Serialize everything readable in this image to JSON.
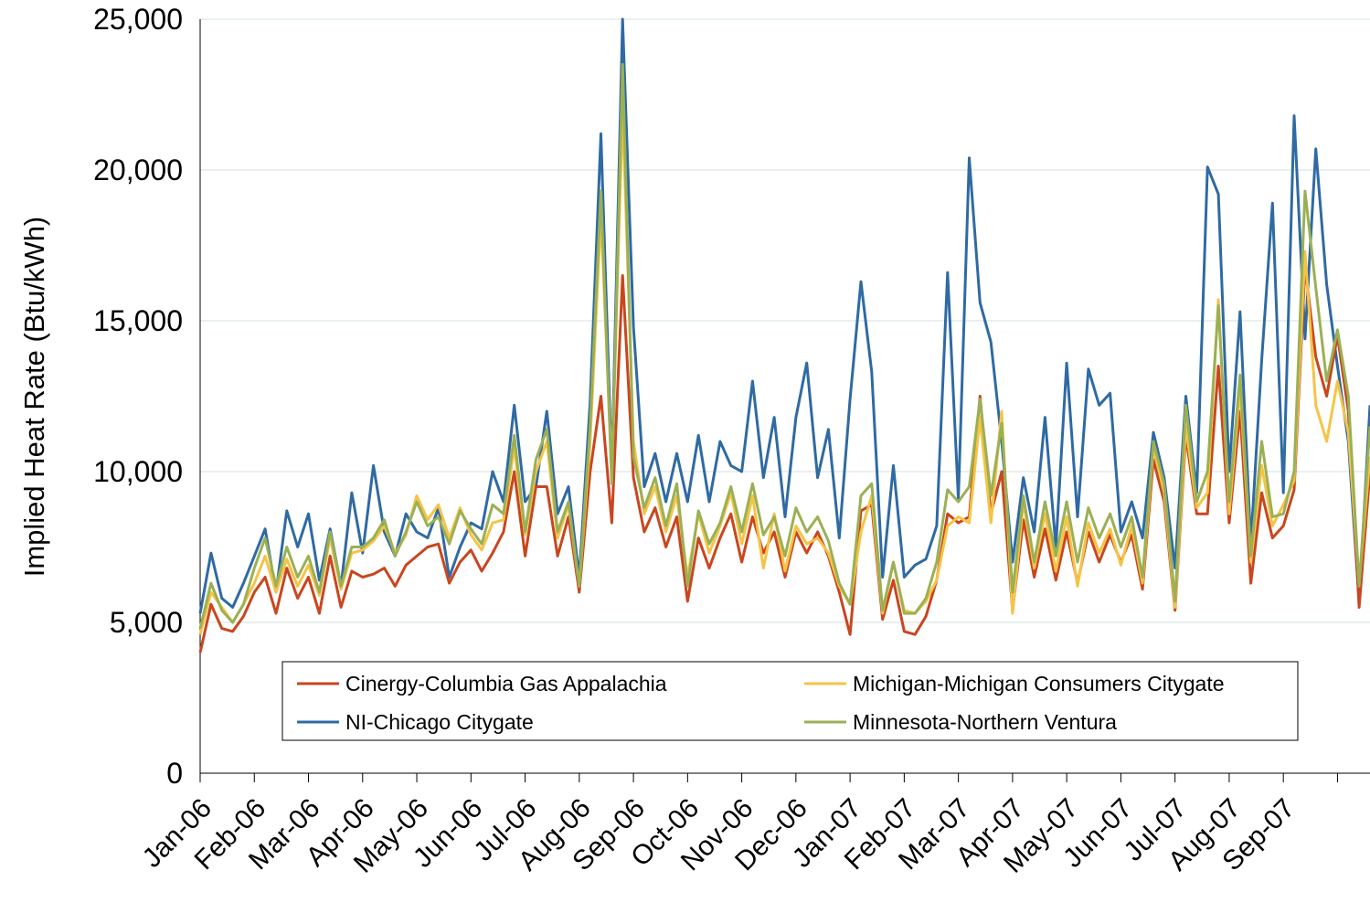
{
  "chart_data": {
    "type": "line",
    "y_label": "Implied Heat Rate (Btu/kWh)",
    "ylim": [
      0,
      25000
    ],
    "yticks": [
      0,
      {
        "value": 5000,
        "label": "5,000"
      },
      {
        "value": 10000,
        "label": "10,000"
      },
      {
        "value": 15000,
        "label": "15,000"
      },
      {
        "value": 20000,
        "label": "20,000"
      },
      {
        "value": 25000,
        "label": "25,000"
      }
    ],
    "grid": true,
    "legend": "bottom",
    "categories": [
      "Jan-06",
      null,
      null,
      null,
      null,
      "Feb-06",
      null,
      null,
      null,
      null,
      "Mar-06",
      null,
      null,
      null,
      null,
      "Apr-06",
      null,
      null,
      null,
      null,
      "May-06",
      null,
      null,
      null,
      null,
      "Jun-06",
      null,
      null,
      null,
      null,
      "Jul-06",
      null,
      null,
      null,
      null,
      "Aug-06",
      null,
      null,
      null,
      null,
      "Sep-06",
      null,
      null,
      null,
      null,
      "Oct-06",
      null,
      null,
      null,
      null,
      "Nov-06",
      null,
      null,
      null,
      null,
      "Dec-06",
      null,
      null,
      null,
      null,
      "Jan-07",
      null,
      null,
      null,
      null,
      "Feb-07",
      null,
      null,
      null,
      null,
      "Mar-07",
      null,
      null,
      null,
      null,
      "Apr-07",
      null,
      null,
      null,
      null,
      "May-07",
      null,
      null,
      null,
      null,
      "Jun-07",
      null,
      null,
      null,
      null,
      "Jul-07",
      null,
      null,
      null,
      null,
      "Aug-07",
      null,
      null,
      null,
      null,
      "Sep-07",
      null,
      null,
      null,
      null,
      null,
      null,
      null,
      null
    ],
    "series": [
      {
        "name": "Cinergy-Columbia Gas Appalachia",
        "color": "#c9461e",
        "values": [
          4000,
          5600,
          4800,
          4700,
          5200,
          6000,
          6500,
          5300,
          6800,
          5800,
          6500,
          5300,
          7200,
          5500,
          6700,
          6500,
          6600,
          6800,
          6200,
          6900,
          7200,
          7500,
          7600,
          6300,
          7000,
          7400,
          6700,
          7300,
          8000,
          10000,
          7200,
          9500,
          9500,
          7200,
          8500,
          6000,
          10000,
          12500,
          8300,
          16500,
          9800,
          8000,
          8800,
          7500,
          8500,
          5700,
          7800,
          6800,
          7800,
          8600,
          7000,
          8500,
          7300,
          8000,
          6500,
          8000,
          7300,
          8000,
          7200,
          6000,
          4600,
          8700,
          8900,
          5100,
          6400,
          4700,
          4600,
          5200,
          6400,
          8600,
          8300,
          8500,
          12500,
          8600,
          10000,
          5400,
          8400,
          6500,
          8100,
          6400,
          8000,
          6300,
          8000,
          7000,
          7900,
          7000,
          7900,
          6100,
          10400,
          9000,
          5400,
          11200,
          8600,
          8600,
          13500,
          8300,
          12000,
          6300,
          9300,
          7800,
          8200,
          9400,
          16800,
          13800,
          12500,
          14500,
          12000,
          5500,
          10000
        ]
      },
      {
        "name": "Michigan-Michigan Consumers Citygate",
        "color": "#f5c446",
        "values": [
          4600,
          6000,
          5500,
          5000,
          5600,
          6300,
          7200,
          6000,
          7100,
          6200,
          6900,
          5900,
          7800,
          6100,
          7300,
          7400,
          7700,
          8200,
          7300,
          7900,
          9200,
          8400,
          8900,
          7800,
          8800,
          7900,
          7400,
          8300,
          8400,
          10800,
          7900,
          10000,
          11000,
          7800,
          8900,
          6200,
          11000,
          18500,
          10000,
          22000,
          11000,
          8600,
          9500,
          8000,
          9200,
          6500,
          8600,
          7300,
          8200,
          9300,
          7600,
          9200,
          6800,
          8600,
          6700,
          8200,
          7600,
          7800,
          7300,
          6200,
          5600,
          8000,
          9200,
          5300,
          7000,
          5400,
          5300,
          5700,
          6400,
          8200,
          8500,
          8300,
          11800,
          8300,
          12000,
          5300,
          9000,
          6800,
          8600,
          6700,
          8500,
          6200,
          8300,
          7300,
          8100,
          6900,
          8200,
          6300,
          10800,
          9300,
          5500,
          11500,
          8800,
          9300,
          15700,
          8600,
          12800,
          7000,
          10200,
          8200,
          8900,
          9700,
          17300,
          12200,
          11000,
          13000,
          11300,
          6300,
          10500
        ]
      },
      {
        "name": "NI-Chicago Citygate",
        "color": "#2f6aa3",
        "values": [
          5300,
          7300,
          5800,
          5500,
          6300,
          7200,
          8100,
          6000,
          8700,
          7500,
          8600,
          6400,
          8100,
          6200,
          9300,
          7300,
          10200,
          8000,
          7200,
          8600,
          8000,
          7800,
          8800,
          6500,
          7500,
          8300,
          8100,
          10000,
          9000,
          12200,
          9000,
          9500,
          12000,
          8600,
          9500,
          6500,
          12300,
          21200,
          10000,
          25000,
          14800,
          9500,
          10600,
          9000,
          10600,
          9000,
          11200,
          9000,
          11000,
          10200,
          10000,
          13000,
          9800,
          11800,
          8500,
          11800,
          13600,
          9800,
          11400,
          7800,
          12400,
          16300,
          13300,
          6500,
          10200,
          6500,
          6900,
          7100,
          8200,
          16600,
          9100,
          20400,
          15600,
          14300,
          11000,
          7000,
          9800,
          8000,
          11800,
          7500,
          13600,
          8500,
          13400,
          12200,
          12600,
          8000,
          9000,
          7800,
          11300,
          9800,
          6800,
          12500,
          9300,
          20100,
          19200,
          10000,
          15300,
          7600,
          13700,
          18900,
          9300,
          21800,
          14400,
          20700,
          16200,
          13500,
          11000,
          5700,
          12200
        ]
      },
      {
        "name": "Minnesota-Northern Ventura",
        "color": "#9bb055",
        "values": [
          4800,
          6300,
          5400,
          5000,
          5600,
          6800,
          7800,
          6200,
          7500,
          6500,
          7200,
          6000,
          8000,
          6200,
          7500,
          7500,
          7800,
          8400,
          7200,
          8000,
          9000,
          8200,
          8500,
          7600,
          8700,
          8100,
          7600,
          8900,
          8600,
          11200,
          8000,
          10400,
          11400,
          8000,
          9000,
          6200,
          11500,
          19300,
          9600,
          23500,
          10500,
          8800,
          9800,
          8200,
          9600,
          6200,
          8700,
          7600,
          8300,
          9500,
          8000,
          9600,
          7900,
          8500,
          7200,
          8800,
          8000,
          8500,
          7700,
          6300,
          5600,
          9200,
          9600,
          5400,
          7000,
          5300,
          5300,
          5800,
          7000,
          9400,
          9000,
          9500,
          12400,
          9200,
          11600,
          6000,
          9200,
          7000,
          9000,
          7200,
          9000,
          7000,
          8800,
          7800,
          8600,
          7500,
          8500,
          6500,
          11000,
          9600,
          5700,
          12200,
          9000,
          10000,
          15500,
          9000,
          13200,
          7200,
          11000,
          8500,
          8600,
          10000,
          19300,
          16100,
          13000,
          14700,
          12500,
          6200,
          11500
        ]
      }
    ]
  }
}
